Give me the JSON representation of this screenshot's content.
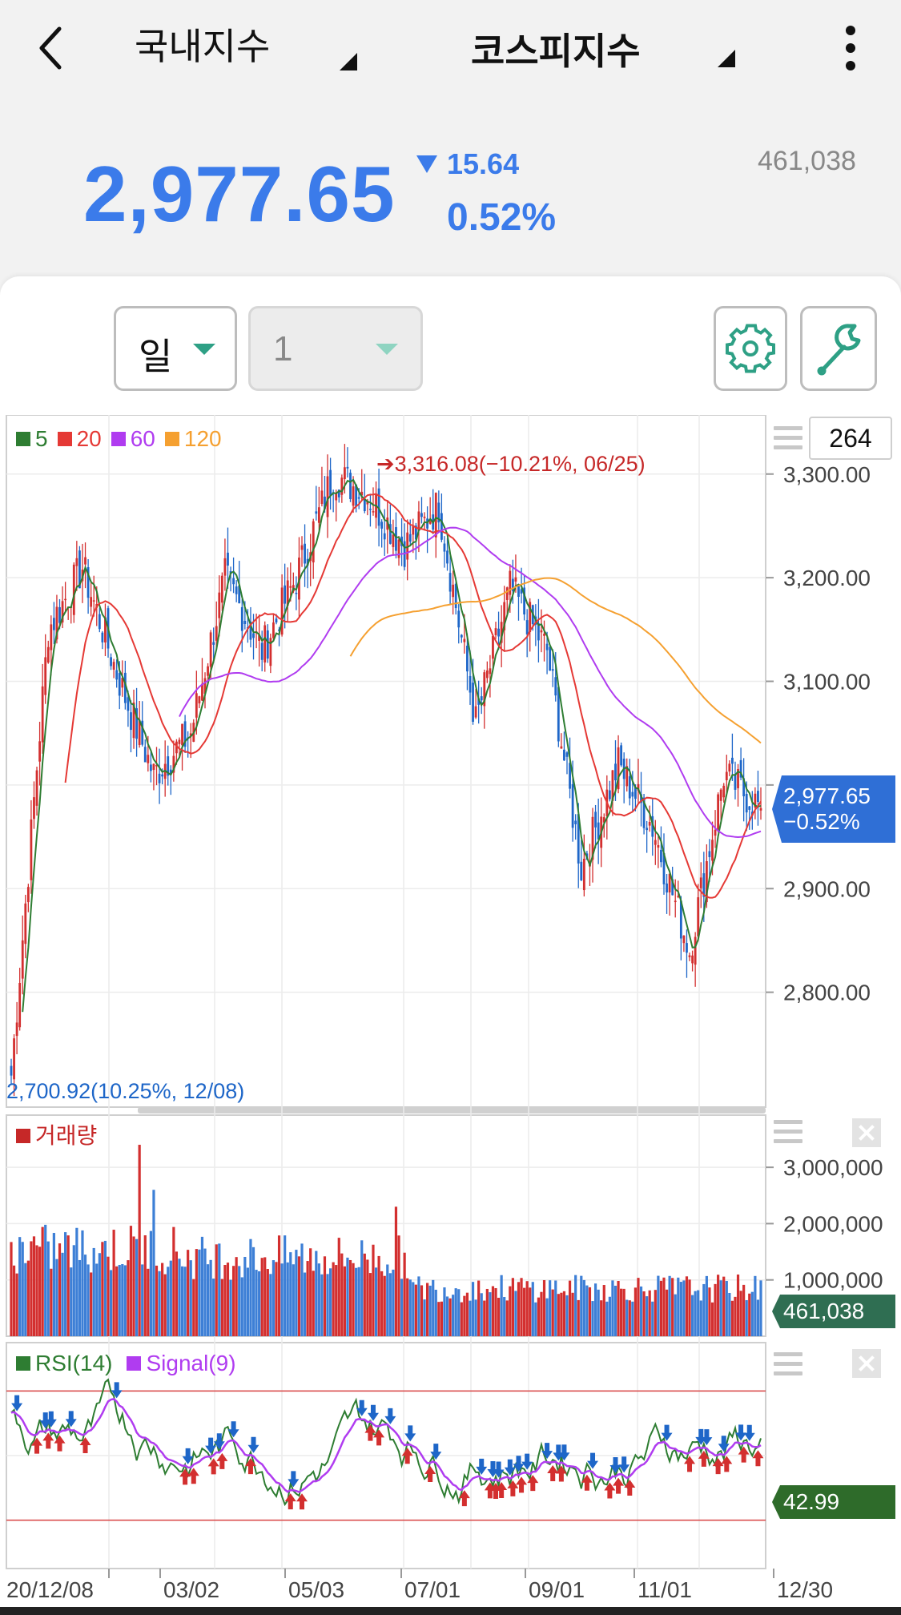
{
  "header": {
    "market_dropdown": "국내지수",
    "index_dropdown": "코스피지수"
  },
  "quote": {
    "price": "2,977.65",
    "change": "15.64",
    "change_direction": "down",
    "change_pct": "0.52%",
    "volume": "461,038",
    "color_down": "#3b7bea"
  },
  "controls": {
    "period": "일",
    "interval": "1",
    "count": "264"
  },
  "icons": [
    "back-arrow-icon",
    "more-vertical-icon",
    "gear-icon",
    "wrench-icon",
    "hamburger-icon",
    "close-icon"
  ],
  "price_chart": {
    "legend": [
      {
        "label": "5",
        "color": "#2e7d32"
      },
      {
        "label": "20",
        "color": "#e53935"
      },
      {
        "label": "60",
        "color": "#b03cf0"
      },
      {
        "label": "120",
        "color": "#f5a030"
      }
    ],
    "high_annotation": "3,316.08(−10.21%, 06/25)",
    "low_annotation": "2,700.92(10.25%, 12/08)",
    "y_ticks": [
      "3,300.00",
      "3,200.00",
      "3,100.00",
      "2,900.00",
      "2,800.00"
    ],
    "current_tag_price": "2,977.65",
    "current_tag_pct": "−0.52%"
  },
  "volume_chart": {
    "legend": "거래량",
    "y_ticks": [
      "3,000,000",
      "2,000,000",
      "1,000,000"
    ],
    "current_tag": "461,038"
  },
  "rsi_chart": {
    "legend_rsi": "RSI(14)",
    "legend_signal": "Signal(9)",
    "current_tag": "42.99"
  },
  "x_axis": [
    "20/12/08",
    "03/02",
    "05/03",
    "07/01",
    "09/01",
    "11/01",
    "12/30"
  ],
  "chart_data": {
    "type": "candlestick",
    "period": "daily",
    "x_range": [
      "20/12/08",
      "12/30"
    ],
    "ylim": [
      2700,
      3340
    ],
    "price_high": 3316.08,
    "price_low": 2700.92,
    "close": [
      {
        "x": "20/12/08",
        "y": 2720
      },
      {
        "x": "01/11",
        "y": 3150
      },
      {
        "x": "01/25",
        "y": 3210
      },
      {
        "x": "02/10",
        "y": 3100
      },
      {
        "x": "03/02",
        "y": 3010
      },
      {
        "x": "03/20",
        "y": 3050
      },
      {
        "x": "04/10",
        "y": 3200
      },
      {
        "x": "05/03",
        "y": 3130
      },
      {
        "x": "05/25",
        "y": 3200
      },
      {
        "x": "06/25",
        "y": 3300
      },
      {
        "x": "07/01",
        "y": 3280
      },
      {
        "x": "07/20",
        "y": 3230
      },
      {
        "x": "08/05",
        "y": 3270
      },
      {
        "x": "08/20",
        "y": 3060
      },
      {
        "x": "09/01",
        "y": 3190
      },
      {
        "x": "09/20",
        "y": 3130
      },
      {
        "x": "10/05",
        "y": 2920
      },
      {
        "x": "10/20",
        "y": 3020
      },
      {
        "x": "11/01",
        "y": 2960
      },
      {
        "x": "11/30",
        "y": 2840
      },
      {
        "x": "12/10",
        "y": 3010
      },
      {
        "x": "12/30",
        "y": 2977.65
      }
    ],
    "volume_ylim": [
      0,
      3500000
    ],
    "rsi_ylim": [
      20,
      80
    ]
  }
}
